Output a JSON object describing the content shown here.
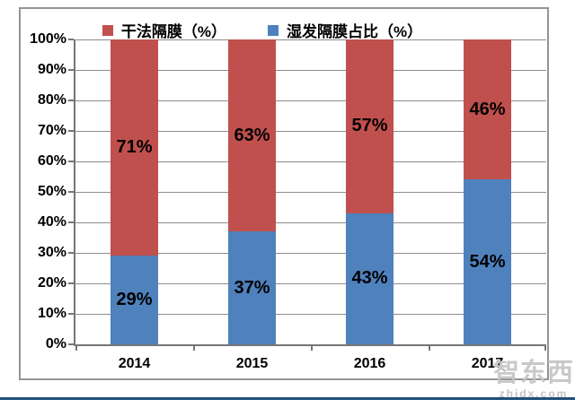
{
  "chart_data": {
    "type": "bar",
    "stacked": true,
    "title": "",
    "xlabel": "",
    "ylabel": "",
    "categories": [
      "2014",
      "2015",
      "2016",
      "2017"
    ],
    "series": [
      {
        "name": "干法隔膜（%）",
        "color": "#C0504D",
        "stack_position": "top",
        "values": [
          71,
          63,
          57,
          46
        ],
        "labels": [
          "71%",
          "63%",
          "57%",
          "46%"
        ]
      },
      {
        "name": "湿发隔膜占比（%）",
        "color": "#4F81BD",
        "stack_position": "bottom",
        "values": [
          29,
          37,
          43,
          54
        ],
        "labels": [
          "29%",
          "37%",
          "43%",
          "54%"
        ]
      }
    ],
    "ylim": [
      0,
      100
    ],
    "yticks": [
      "0%",
      "10%",
      "20%",
      "30%",
      "40%",
      "50%",
      "60%",
      "70%",
      "80%",
      "90%",
      "100%"
    ],
    "grid": true,
    "legend_position": "top"
  },
  "watermark": {
    "logo": "智东西",
    "url": "zhidx.com"
  }
}
